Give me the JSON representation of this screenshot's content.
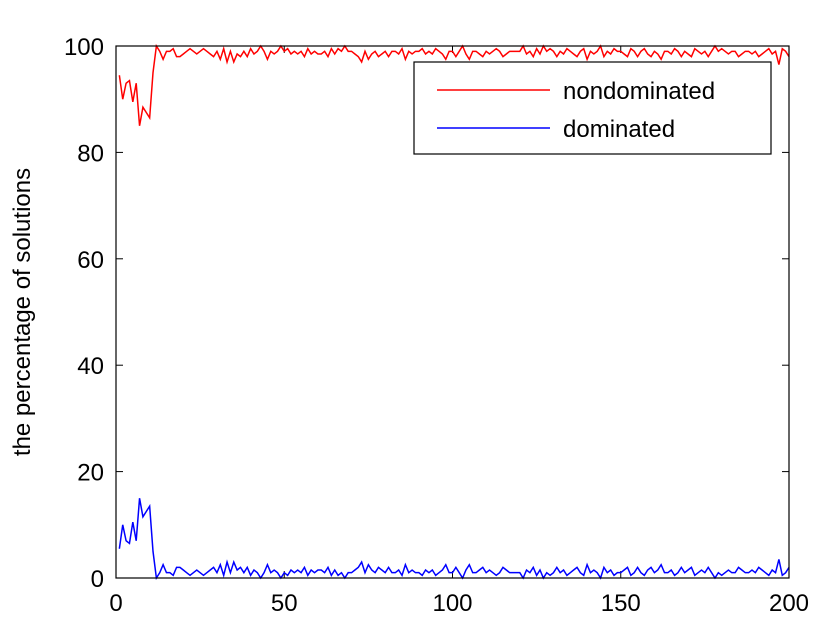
{
  "chart_data": {
    "type": "line",
    "y_label": "the percentage of solutions",
    "x": [
      1,
      2,
      3,
      4,
      5,
      6,
      7,
      8,
      9,
      10,
      11,
      12,
      13,
      14,
      15,
      16,
      17,
      18,
      19,
      20,
      21,
      22,
      23,
      24,
      25,
      26,
      27,
      28,
      29,
      30,
      31,
      32,
      33,
      34,
      35,
      36,
      37,
      38,
      39,
      40,
      41,
      42,
      43,
      44,
      45,
      46,
      47,
      48,
      49,
      50,
      51,
      52,
      53,
      54,
      55,
      56,
      57,
      58,
      59,
      60,
      61,
      62,
      63,
      64,
      65,
      66,
      67,
      68,
      69,
      70,
      71,
      72,
      73,
      74,
      75,
      76,
      77,
      78,
      79,
      80,
      81,
      82,
      83,
      84,
      85,
      86,
      87,
      88,
      89,
      90,
      91,
      92,
      93,
      94,
      95,
      96,
      97,
      98,
      99,
      100,
      101,
      102,
      103,
      104,
      105,
      106,
      107,
      108,
      109,
      110,
      111,
      112,
      113,
      114,
      115,
      116,
      117,
      118,
      119,
      120,
      121,
      122,
      123,
      124,
      125,
      126,
      127,
      128,
      129,
      130,
      131,
      132,
      133,
      134,
      135,
      136,
      137,
      138,
      139,
      140,
      141,
      142,
      143,
      144,
      145,
      146,
      147,
      148,
      149,
      150,
      151,
      152,
      153,
      154,
      155,
      156,
      157,
      158,
      159,
      160,
      161,
      162,
      163,
      164,
      165,
      166,
      167,
      168,
      169,
      170,
      171,
      172,
      173,
      174,
      175,
      176,
      177,
      178,
      179,
      180,
      181,
      182,
      183,
      184,
      185,
      186,
      187,
      188,
      189,
      190,
      191,
      192,
      193,
      194,
      195,
      196,
      197,
      198,
      199,
      200
    ],
    "series": [
      {
        "name": "nondominated",
        "color": "#ff0000",
        "values": [
          94.5,
          90,
          93,
          93.5,
          89.5,
          93,
          85,
          88.5,
          87.5,
          86.5,
          95,
          100,
          99,
          97.5,
          99,
          99,
          99.5,
          98,
          98,
          98.5,
          99,
          99.5,
          99,
          98.5,
          99,
          99.5,
          99,
          98.5,
          98,
          99,
          97.5,
          99.5,
          97,
          99,
          97,
          98.5,
          98,
          99,
          98,
          99.5,
          98.5,
          99,
          100,
          99,
          97.5,
          99,
          98.5,
          99,
          100,
          99,
          99.5,
          98.5,
          99,
          98.5,
          99,
          98,
          99.5,
          98.5,
          99,
          98.5,
          98.5,
          99,
          98,
          99.5,
          98.5,
          99.5,
          99,
          100,
          99,
          99,
          98.5,
          98,
          97,
          99,
          97.5,
          98.5,
          99,
          98,
          98.5,
          99,
          98,
          99,
          99,
          98.5,
          99.5,
          97.5,
          99,
          98.5,
          99,
          99,
          99.5,
          98.5,
          99,
          98.5,
          99.5,
          99,
          98.5,
          97.5,
          99,
          99,
          98,
          99,
          100,
          98.5,
          97.5,
          99,
          99,
          98.5,
          98,
          99,
          98.5,
          99,
          99.5,
          99,
          98,
          98.5,
          99,
          99,
          99,
          99,
          100,
          98.5,
          99,
          98,
          99.5,
          98.5,
          100,
          99,
          99.5,
          99,
          98,
          99,
          98.5,
          99.5,
          99,
          98.5,
          98,
          99,
          99.5,
          97.5,
          99,
          98.5,
          99,
          100,
          98,
          99,
          98.5,
          99.5,
          99,
          99,
          98.5,
          98,
          99.5,
          99,
          98,
          99,
          99.5,
          98.5,
          98,
          99,
          98.5,
          97.5,
          99,
          99,
          98.5,
          99.5,
          99,
          98,
          99,
          98.5,
          98,
          99.5,
          99,
          98.5,
          99,
          98,
          99,
          100,
          99,
          99.5,
          99,
          98.5,
          99,
          99,
          98,
          98.5,
          99,
          99,
          98.5,
          99,
          98,
          98.5,
          99,
          99.5,
          98.5,
          99,
          96.5,
          99.5,
          99,
          98
        ]
      },
      {
        "name": "dominated",
        "color": "#0000ff",
        "values": [
          5.5,
          10,
          7,
          6.5,
          10.5,
          7,
          15,
          11.5,
          12.5,
          13.5,
          5,
          0,
          1,
          2.5,
          1,
          1,
          0.5,
          2,
          2,
          1.5,
          1,
          0.5,
          1,
          1.5,
          1,
          0.5,
          1,
          1.5,
          2,
          1,
          2.5,
          0.5,
          3,
          1,
          3,
          1.5,
          2,
          1,
          2,
          0.5,
          1.5,
          1,
          0,
          1,
          2.5,
          1,
          1.5,
          1,
          0,
          1,
          0.5,
          1.5,
          1,
          1.5,
          1,
          2,
          0.5,
          1.5,
          1,
          1.5,
          1.5,
          1,
          2,
          0.5,
          1.5,
          0.5,
          1,
          0,
          1,
          1,
          1.5,
          2,
          3,
          1,
          2.5,
          1.5,
          1,
          2,
          1.5,
          1,
          2,
          1,
          1,
          1.5,
          0.5,
          2.5,
          1,
          1.5,
          1,
          1,
          0.5,
          1.5,
          1,
          1.5,
          0.5,
          1,
          1.5,
          2.5,
          1,
          1,
          2,
          1,
          0,
          1.5,
          2.5,
          1,
          1,
          1.5,
          2,
          1,
          1.5,
          1,
          0.5,
          1,
          2,
          1.5,
          1,
          1,
          1,
          1,
          0,
          1.5,
          1,
          2,
          0.5,
          1.5,
          0,
          1,
          0.5,
          1,
          2,
          1,
          1.5,
          0.5,
          1,
          1.5,
          2,
          1,
          0.5,
          2.5,
          1,
          1.5,
          1,
          0,
          2,
          1,
          1.5,
          0.5,
          1,
          1,
          1.5,
          2,
          0.5,
          1,
          2,
          1,
          0.5,
          1.5,
          2,
          1,
          1.5,
          2.5,
          1,
          1,
          1.5,
          0.5,
          1,
          2,
          1,
          1.5,
          2,
          0.5,
          1,
          1.5,
          1,
          2,
          1,
          0,
          1,
          0.5,
          1,
          1.5,
          1,
          1,
          2,
          1.5,
          1,
          1,
          1.5,
          1,
          2,
          1.5,
          1,
          0.5,
          1.5,
          1,
          3.5,
          0.5,
          1,
          2
        ]
      }
    ],
    "xlim": [
      0,
      200
    ],
    "xticks": [
      0,
      50,
      100,
      150,
      200
    ],
    "ylim": [
      0,
      100
    ],
    "yticks": [
      0,
      20,
      40,
      60,
      80,
      100
    ],
    "legend": "top-right",
    "grid": false
  }
}
